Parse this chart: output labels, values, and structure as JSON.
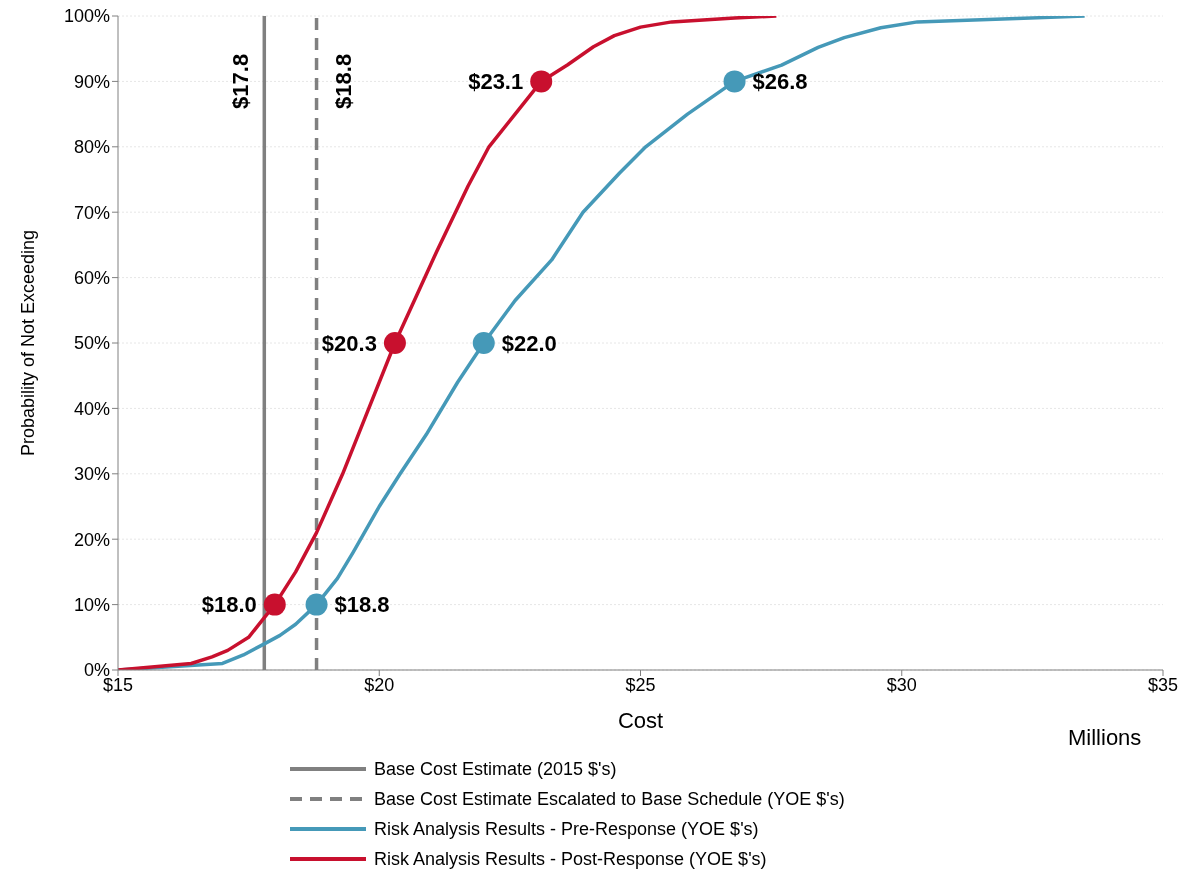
{
  "chart_data": {
    "type": "line",
    "xlabel": "Cost",
    "ylabel": "Probability of Not Exceeding",
    "xlim": [
      15,
      35
    ],
    "xticks": [
      {
        "value": 15,
        "label": "$15"
      },
      {
        "value": 20,
        "label": "$20"
      },
      {
        "value": 25,
        "label": "$25"
      },
      {
        "value": 30,
        "label": "$30"
      },
      {
        "value": 35,
        "label": "$35"
      }
    ],
    "ylim": [
      0,
      100
    ],
    "yticks": [
      {
        "value": 0,
        "label": "0%"
      },
      {
        "value": 10,
        "label": "10%"
      },
      {
        "value": 20,
        "label": "20%"
      },
      {
        "value": 30,
        "label": "30%"
      },
      {
        "value": 40,
        "label": "40%"
      },
      {
        "value": 50,
        "label": "50%"
      },
      {
        "value": 60,
        "label": "60%"
      },
      {
        "value": 70,
        "label": "70%"
      },
      {
        "value": 80,
        "label": "80%"
      },
      {
        "value": 90,
        "label": "90%"
      },
      {
        "value": 100,
        "label": "100%"
      }
    ],
    "grid": "y",
    "legend": "bottom",
    "marker": "none",
    "annotations": [
      {
        "text": "$17.8",
        "x": 17.8,
        "y": 90
      },
      {
        "text": "$18.8",
        "x": 18.8,
        "y": 90
      },
      "Millions",
      {
        "text": "$18.8",
        "x": 18.8,
        "y": 10
      },
      {
        "text": "$22.0",
        "x": 22.0,
        "y": 50
      },
      {
        "text": "$26.8",
        "x": 26.8,
        "y": 90
      },
      {
        "text": "$18.0",
        "x": 18.0,
        "y": 10
      },
      {
        "text": "$20.3",
        "x": 20.3,
        "y": 50
      },
      {
        "text": "$23.1",
        "x": 23.1,
        "y": 90
      }
    ],
    "series": [
      {
        "name": "Base Cost Estimate (2015 $'s)",
        "color": "#808080",
        "line_style": "solid",
        "x": [
          17.8,
          17.8
        ],
        "values": [
          0,
          100
        ]
      },
      {
        "name": "Base Cost Estimate Escalated to Base Schedule (YOE $'s)",
        "color": "#808080",
        "line_style": "dashed",
        "x": [
          18.8,
          18.8
        ],
        "values": [
          0,
          100
        ]
      },
      {
        "name": "Risk Analysis Results - Pre-Response (YOE $'s)",
        "color": "#4599b8",
        "line_style": "solid",
        "x": [
          15,
          17.0,
          17.4,
          17.8,
          18.1,
          18.4,
          18.8,
          19.2,
          19.5,
          20.0,
          20.4,
          20.9,
          21.5,
          22.0,
          22.6,
          23.3,
          23.9,
          24.6,
          25.1,
          25.9,
          26.8,
          27.7,
          28.4,
          28.9,
          29.6,
          30.3,
          32.2,
          33.5
        ],
        "values": [
          0,
          1,
          2.3,
          4,
          5.3,
          7,
          10,
          14,
          18,
          25,
          30,
          36,
          44,
          50,
          56.5,
          62.7,
          70,
          76,
          80,
          85,
          90,
          92.5,
          95.2,
          96.7,
          98.2,
          99.1,
          99.6,
          100
        ]
      },
      {
        "name": "Risk Analysis Results - Post-Response (YOE $'s)",
        "color": "#c8102e",
        "line_style": "solid",
        "x": [
          15,
          16.4,
          16.8,
          17.1,
          17.5,
          17.8,
          18.0,
          18.4,
          18.8,
          19.3,
          19.8,
          20.3,
          20.7,
          21.1,
          21.7,
          22.1,
          22.6,
          23.1,
          23.6,
          24.1,
          24.5,
          25.0,
          25.6,
          26.8,
          27.6
        ],
        "values": [
          0,
          1,
          2,
          3,
          5,
          8,
          10,
          15,
          21,
          30,
          40,
          50,
          57,
          64,
          74,
          80,
          85,
          90,
          92.5,
          95.3,
          97,
          98.3,
          99.1,
          99.7,
          100
        ]
      },
      {
        "type": "scatter",
        "color": "#4599b8",
        "marker": "circle",
        "x": [
          18.8,
          22.0,
          26.8
        ],
        "values": [
          10,
          50,
          90
        ]
      },
      {
        "type": "scatter",
        "color": "#c8102e",
        "marker": "circle",
        "x": [
          18.0,
          20.3,
          23.1
        ],
        "values": [
          10,
          50,
          90
        ]
      }
    ]
  }
}
